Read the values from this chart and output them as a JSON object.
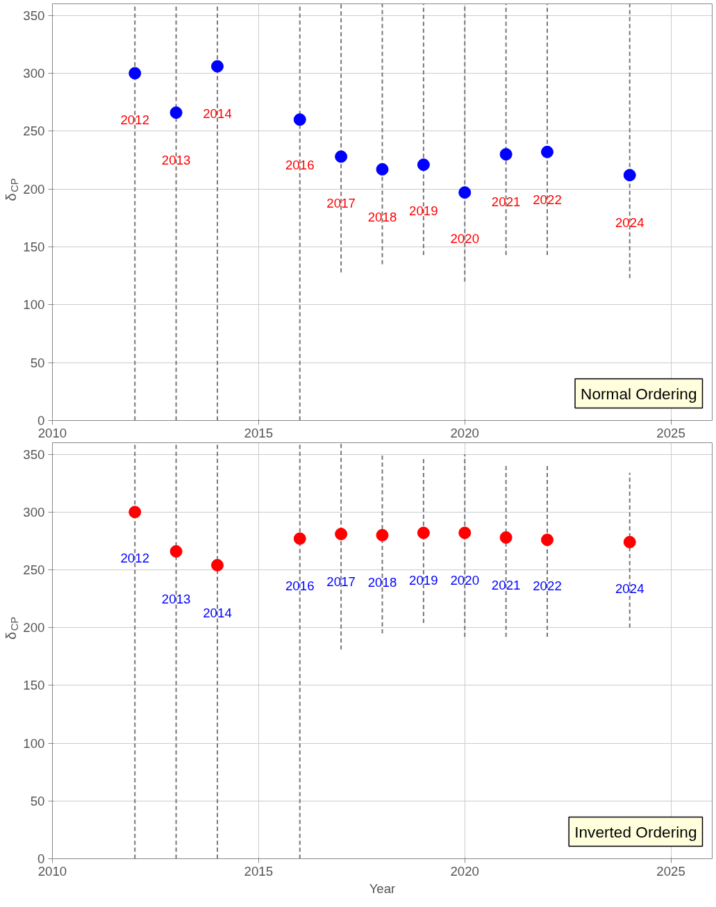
{
  "chart_data": [
    {
      "type": "scatter",
      "ylabel": "δ$_{CP}$",
      "x": [
        2012,
        2013,
        2014,
        2016,
        2017,
        2018,
        2019,
        2020,
        2021,
        2022,
        2024
      ],
      "series": [
        {
          "color": "#0000ff",
          "values": [
            300,
            266,
            306,
            260,
            228,
            217,
            221,
            197,
            230,
            232,
            212
          ],
          "errors": [
            [
              0,
              360
            ],
            [
              0,
              360
            ],
            [
              0,
              360
            ],
            [
              0,
              360
            ],
            [
              128,
              360
            ],
            [
              135,
              360
            ],
            [
              143,
              360
            ],
            [
              120,
              360
            ],
            [
              143,
              360
            ],
            [
              143,
              360
            ],
            [
              123,
              360
            ]
          ]
        }
      ],
      "annotations": [
        "Normal Ordering",
        {
          "text": "2012",
          "x": 2012,
          "y": 260
        },
        {
          "text": "2013",
          "x": 2013,
          "y": 225
        },
        {
          "text": "2014",
          "x": 2014,
          "y": 265
        },
        {
          "text": "2016",
          "x": 2016,
          "y": 221
        },
        {
          "text": "2017",
          "x": 2017,
          "y": 188
        },
        {
          "text": "2018",
          "x": 2018,
          "y": 176
        },
        {
          "text": "2019",
          "x": 2019,
          "y": 181
        },
        {
          "text": "2020",
          "x": 2020,
          "y": 157
        },
        {
          "text": "2021",
          "x": 2021,
          "y": 189
        },
        {
          "text": "2022",
          "x": 2022,
          "y": 191
        },
        {
          "text": "2024",
          "x": 2024,
          "y": 171
        }
      ],
      "xlim": [
        2010,
        2026
      ],
      "xticks": [
        2010,
        2015,
        2020,
        2025
      ],
      "ylim": [
        0,
        360
      ],
      "yticks": [
        0,
        50,
        100,
        150,
        200,
        250,
        300,
        350
      ],
      "grid": true,
      "marker": "circle"
    },
    {
      "type": "scatter",
      "xlabel": "Year",
      "ylabel": "δ$_{CP}$",
      "x": [
        2012,
        2013,
        2014,
        2016,
        2017,
        2018,
        2019,
        2020,
        2021,
        2022,
        2024
      ],
      "series": [
        {
          "color": "#ff0000",
          "values": [
            300,
            266,
            254,
            277,
            281,
            280,
            282,
            282,
            278,
            276,
            274
          ],
          "errors": [
            [
              0,
              360
            ],
            [
              0,
              360
            ],
            [
              0,
              360
            ],
            [
              0,
              360
            ],
            [
              181,
              360
            ],
            [
              195,
              350
            ],
            [
              204,
              348
            ],
            [
              192,
              350
            ],
            [
              192,
              340
            ],
            [
              192,
              340
            ],
            [
              200,
              334
            ]
          ]
        }
      ],
      "annotations": [
        "Inverted Ordering",
        {
          "text": "2012",
          "x": 2012,
          "y": 260
        },
        {
          "text": "2013",
          "x": 2013,
          "y": 225
        },
        {
          "text": "2014",
          "x": 2014,
          "y": 213
        },
        {
          "text": "2016",
          "x": 2016,
          "y": 236
        },
        {
          "text": "2017",
          "x": 2017,
          "y": 240
        },
        {
          "text": "2018",
          "x": 2018,
          "y": 239
        },
        {
          "text": "2019",
          "x": 2019,
          "y": 241
        },
        {
          "text": "2020",
          "x": 2020,
          "y": 241
        },
        {
          "text": "2021",
          "x": 2021,
          "y": 237
        },
        {
          "text": "2022",
          "x": 2022,
          "y": 236
        },
        {
          "text": "2024",
          "x": 2024,
          "y": 234
        }
      ],
      "xlim": [
        2010,
        2026
      ],
      "xticks": [
        2010,
        2015,
        2020,
        2025
      ],
      "ylim": [
        0,
        360
      ],
      "yticks": [
        0,
        50,
        100,
        150,
        200,
        250,
        300,
        350
      ],
      "grid": true,
      "marker": "circle"
    }
  ]
}
